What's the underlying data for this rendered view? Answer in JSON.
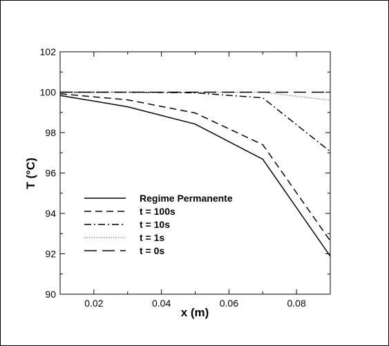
{
  "chart_data": {
    "type": "line",
    "title": "",
    "xlabel": "x (m)",
    "ylabel": "T (°C)",
    "xlim": [
      0.01,
      0.09
    ],
    "ylim": [
      90,
      102
    ],
    "xticks": [
      0.02,
      0.04,
      0.06,
      0.08
    ],
    "xtick_labels": [
      "0.02",
      "0.04",
      "0.06",
      "0.08"
    ],
    "yticks": [
      90,
      92,
      94,
      96,
      98,
      100,
      102
    ],
    "ytick_labels": [
      "90",
      "92",
      "94",
      "96",
      "98",
      "100",
      "102"
    ],
    "grid": false,
    "legend_position": "bottom-left",
    "series": [
      {
        "name": "Regime Permanente",
        "style": "solid",
        "color": "#000000",
        "x": [
          0.01,
          0.03,
          0.05,
          0.07,
          0.09
        ],
        "y": [
          99.84,
          99.28,
          98.42,
          96.68,
          91.88
        ]
      },
      {
        "name": "t = 100s",
        "style": "dashed",
        "color": "#000000",
        "x": [
          0.01,
          0.03,
          0.05,
          0.07,
          0.09
        ],
        "y": [
          99.92,
          99.62,
          98.97,
          97.4,
          92.64
        ]
      },
      {
        "name": "t = 10s",
        "style": "dashdot",
        "color": "#000000",
        "x": [
          0.01,
          0.03,
          0.05,
          0.07,
          0.09
        ],
        "y": [
          100.0,
          100.0,
          99.97,
          99.72,
          97.06
        ]
      },
      {
        "name": "t = 1s",
        "style": "dotted",
        "color": "#8c8c8c",
        "x": [
          0.01,
          0.03,
          0.05,
          0.07,
          0.09
        ],
        "y": [
          100.0,
          100.0,
          100.0,
          100.0,
          99.6
        ]
      },
      {
        "name": "t = 0s",
        "style": "longdash",
        "color": "#000000",
        "x": [
          0.01,
          0.03,
          0.05,
          0.07,
          0.09
        ],
        "y": [
          100.0,
          100.0,
          100.0,
          100.0,
          100.0
        ]
      }
    ]
  }
}
